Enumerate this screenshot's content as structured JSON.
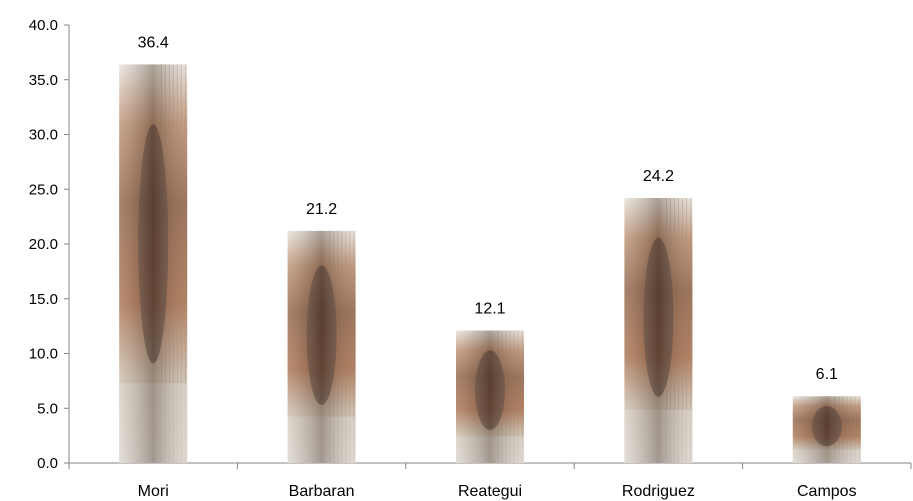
{
  "chart_data": {
    "type": "bar",
    "categories": [
      "Mori",
      "Barbaran",
      "Reategui",
      "Rodriguez",
      "Campos"
    ],
    "values": [
      36.4,
      21.2,
      12.1,
      24.2,
      6.1
    ],
    "data_labels": [
      "36.4",
      "21.2",
      "12.1",
      "24.2",
      "6.1"
    ],
    "ylim": [
      0,
      40
    ],
    "y_ticks": [
      0,
      5,
      10,
      15,
      20,
      25,
      30,
      35,
      40
    ],
    "y_tick_labels": [
      "0.0",
      "5.0",
      "10.0",
      "15.0",
      "20.0",
      "25.0",
      "30.0",
      "35.0",
      "40.0"
    ],
    "grid": false,
    "legend": "none",
    "title": "",
    "xlabel": "",
    "ylabel": "",
    "bar_fill": "photo-texture",
    "colors": {
      "axis": "#868686",
      "bar_light": "#d9d4cc",
      "bar_wood": "#a0522d",
      "bar_dark": "#4a3a34",
      "bar_stripe": "#8a7c70"
    }
  }
}
